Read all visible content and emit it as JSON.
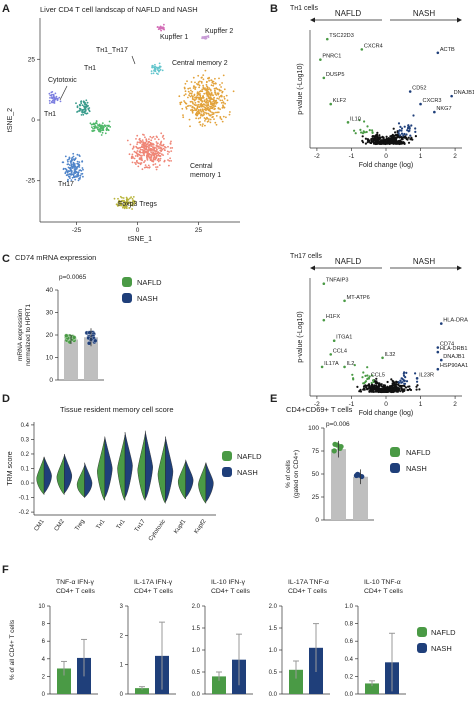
{
  "panel_letters": [
    "A",
    "B",
    "C",
    "D",
    "E",
    "F"
  ],
  "colors": {
    "nafld": "#4a9a45",
    "nash": "#1f3f7a",
    "up": "#1f3f7a",
    "down": "#4a9a45",
    "ns": "#111111",
    "bar": "#bfbfbf"
  },
  "chart_data": [
    {
      "panel": "A",
      "type": "scatter",
      "title": "Liver CD4 T cell landscap of NAFLD and NASH",
      "xlabel": "tSNE_1",
      "ylabel": "tSNE_2",
      "xlim": [
        -40,
        42
      ],
      "ylim": [
        -42,
        42
      ],
      "xticks": [
        -25,
        0,
        25
      ],
      "yticks": [
        -25,
        0,
        25
      ],
      "clusters": [
        {
          "label": "Kupffer 1",
          "color": "#d36db7",
          "cx": 10,
          "cy": 38
        },
        {
          "label": "Kupffer 2",
          "color": "#c89bd6",
          "cx": 28,
          "cy": 34
        },
        {
          "label": "Cytotoxic",
          "color": "#7c7fe0",
          "cx": -34,
          "cy": 9
        },
        {
          "label": "TH1",
          "color": "#3a9c8c",
          "cx": -22,
          "cy": 5
        },
        {
          "label": "TH1_TH17",
          "color": "#63c5cc",
          "cx": 8,
          "cy": 21
        },
        {
          "label": "Central memory 2",
          "color": "#e2a23a",
          "cx": 28,
          "cy": 8
        },
        {
          "label": "TH1",
          "color": "#4fb86a",
          "cx": -15,
          "cy": -3
        },
        {
          "label": "TH17",
          "color": "#4f84c9",
          "cx": -26,
          "cy": -20
        },
        {
          "label": "Central memory 1",
          "color": "#ef8677",
          "cx": 5,
          "cy": -13
        },
        {
          "label": "Foxp3 Tregs",
          "color": "#b8b43a",
          "cx": -5,
          "cy": -34
        }
      ],
      "cluster_label_text": {
        "kupffer1": "Kupffer 1",
        "kupffer2": "Kupffer 2",
        "cytotoxic": "Cytotoxic",
        "th1_th17": "Tн1_Tн17",
        "th1_top": "Tн1",
        "th1_left": "Tн1",
        "cm2": "Central memory 2",
        "th17": "Tн17",
        "cm1_a": "Central",
        "cm1_b": "memory 1",
        "tregs": "Foxp3 Tregs"
      }
    },
    {
      "panel": "B",
      "type": "scatter",
      "title": "Tн1 cells",
      "xlabel": "Fold change (log)",
      "ylabel": "p-value (-Log10)",
      "xlim": [
        -2.2,
        2.2
      ],
      "xticks": [
        -2,
        -1,
        0,
        1,
        2
      ],
      "arrow_labels": [
        "NAFLD",
        "NASH"
      ],
      "labeled_genes": [
        {
          "gene": "TSC22D3",
          "x": -1.7,
          "y": 9.2,
          "group": "down"
        },
        {
          "gene": "PNRC1",
          "x": -1.9,
          "y": 7.4,
          "group": "down"
        },
        {
          "gene": "CXCR4",
          "x": -0.7,
          "y": 8.3,
          "group": "down"
        },
        {
          "gene": "DUSP5",
          "x": -1.8,
          "y": 5.8,
          "group": "down"
        },
        {
          "gene": "KLF2",
          "x": -1.6,
          "y": 3.5,
          "group": "down"
        },
        {
          "gene": "IL10",
          "x": -1.1,
          "y": 1.9,
          "group": "down"
        },
        {
          "gene": "ACTB",
          "x": 1.5,
          "y": 8.0,
          "group": "up"
        },
        {
          "gene": "CD52",
          "x": 0.7,
          "y": 4.6,
          "group": "up"
        },
        {
          "gene": "CXCR3",
          "x": 1.0,
          "y": 3.5,
          "group": "up"
        },
        {
          "gene": "DNAJB1",
          "x": 1.9,
          "y": 4.2,
          "group": "up"
        },
        {
          "gene": "NKG7",
          "x": 1.4,
          "y": 2.8,
          "group": "up"
        }
      ]
    },
    {
      "panel": "B",
      "type": "scatter",
      "title": "Tн17 cells",
      "xlabel": "Fold change (log)",
      "ylabel": "p-value (-Log10)",
      "xlim": [
        -2.2,
        2.2
      ],
      "xticks": [
        -2,
        -1,
        0,
        1,
        2
      ],
      "arrow_labels": [
        "NAFLD",
        "NASH"
      ],
      "labeled_genes": [
        {
          "gene": "TNFAIP3",
          "x": -1.8,
          "y": 9.5,
          "group": "down"
        },
        {
          "gene": "MT-ATP6",
          "x": -1.2,
          "y": 8.0,
          "group": "down"
        },
        {
          "gene": "H1FX",
          "x": -1.8,
          "y": 6.3,
          "group": "down"
        },
        {
          "gene": "ITGA1",
          "x": -1.5,
          "y": 4.5,
          "group": "down"
        },
        {
          "gene": "CCL4",
          "x": -1.6,
          "y": 3.3,
          "group": "down"
        },
        {
          "gene": "IL17A",
          "x": -1.85,
          "y": 2.2,
          "group": "down"
        },
        {
          "gene": "IL2",
          "x": -1.2,
          "y": 2.2,
          "group": "down"
        },
        {
          "gene": "IL32",
          "x": -0.1,
          "y": 3.0,
          "group": "down"
        },
        {
          "gene": "CCL5",
          "x": -0.5,
          "y": 1.2,
          "group": "down"
        },
        {
          "gene": "HLA-DRA",
          "x": 1.6,
          "y": 6.0,
          "group": "up"
        },
        {
          "gene": "CD74",
          "x": 1.5,
          "y": 3.9,
          "group": "up"
        },
        {
          "gene": "HLA-DRB1",
          "x": 1.5,
          "y": 3.5,
          "group": "up"
        },
        {
          "gene": "DNAJB1",
          "x": 1.6,
          "y": 2.8,
          "group": "up"
        },
        {
          "gene": "HSP90AA1",
          "x": 1.5,
          "y": 2.0,
          "group": "up"
        },
        {
          "gene": "IL23R",
          "x": 0.9,
          "y": 1.2,
          "group": "up"
        }
      ]
    },
    {
      "panel": "C",
      "type": "bar",
      "title": "CD74 mRNA expression",
      "ylabel_lines": [
        "mRNA expression",
        "normalized to HPRT1"
      ],
      "ylim": [
        0,
        40
      ],
      "yticks": [
        0,
        10,
        20,
        30,
        40
      ],
      "categories": [
        "NAFLD",
        "NASH"
      ],
      "values": [
        18,
        19
      ],
      "error": [
        2,
        4
      ],
      "pvalue": "p=0.0065"
    },
    {
      "panel": "D",
      "type": "violin",
      "title": "Tissue resident memory cell score",
      "ylabel": "TRM score",
      "ylim": [
        -0.22,
        0.42
      ],
      "yticks": [
        -0.2,
        -0.1,
        0.0,
        0.1,
        0.2,
        0.3,
        0.4
      ],
      "categories": [
        "CM1",
        "CM2",
        "Treg",
        "Tн1",
        "Tн1",
        "Tн17",
        "Cytotoxic",
        "Kupf1",
        "Kupf2"
      ],
      "series": [
        {
          "name": "NAFLD",
          "max": [
            0.18,
            0.19,
            0.12,
            0.31,
            0.33,
            0.34,
            0.3,
            0.15,
            0.14
          ],
          "min": [
            -0.08,
            -0.08,
            -0.1,
            -0.12,
            -0.12,
            -0.12,
            -0.14,
            -0.11,
            -0.14
          ],
          "median": [
            0.03,
            0.04,
            -0.01,
            0.08,
            0.1,
            0.09,
            0.06,
            0.01,
            -0.01
          ]
        },
        {
          "name": "NASH",
          "max": [
            0.18,
            0.2,
            0.14,
            0.32,
            0.35,
            0.36,
            0.32,
            0.16,
            0.14
          ],
          "min": [
            -0.07,
            -0.07,
            -0.1,
            -0.1,
            -0.1,
            -0.11,
            -0.13,
            -0.1,
            -0.13
          ],
          "median": [
            0.05,
            0.05,
            0.0,
            0.1,
            0.12,
            0.11,
            0.08,
            0.02,
            0.0
          ]
        }
      ]
    },
    {
      "panel": "E",
      "type": "bar",
      "title": "CD4+CD69+ T cells",
      "ylabel_lines": [
        "% of cells",
        "(gated on CD4+)"
      ],
      "ylim": [
        0,
        100
      ],
      "yticks": [
        0,
        25,
        50,
        75,
        100
      ],
      "categories": [
        "NAFLD",
        "NASH"
      ],
      "values": [
        77,
        47
      ],
      "error": [
        9,
        8
      ],
      "pvalue": "p=0.006"
    },
    {
      "panel": "F",
      "type": "bar",
      "ylabel": "% of all CD4+ T cells",
      "series_names": [
        "NAFLD",
        "NASH"
      ],
      "subplots": [
        {
          "title_lines": [
            "TNF-α IFN-γ",
            "CD4+ T cells"
          ],
          "ylim": [
            0,
            10
          ],
          "yticks": [
            0,
            2,
            4,
            6,
            8,
            10
          ],
          "values": [
            2.9,
            4.1
          ],
          "error": [
            0.8,
            2.1
          ]
        },
        {
          "title_lines": [
            "IL-17A IFN-γ",
            "CD4+ T cells"
          ],
          "ylim": [
            0,
            3
          ],
          "yticks": [
            0,
            1,
            2,
            3
          ],
          "values": [
            0.2,
            1.3
          ],
          "error": [
            0.05,
            1.15
          ]
        },
        {
          "title_lines": [
            "IL-10 IFN-γ",
            "CD4+ T cells"
          ],
          "ylim": [
            0,
            2
          ],
          "yticks": [
            0.0,
            0.5,
            1.0,
            1.5,
            2.0
          ],
          "values": [
            0.4,
            0.78
          ],
          "error": [
            0.1,
            0.58
          ]
        },
        {
          "title_lines": [
            "IL-17A TNF-α",
            "CD4+ T cells"
          ],
          "ylim": [
            0,
            2
          ],
          "yticks": [
            0.0,
            0.5,
            1.0,
            1.5,
            2.0
          ],
          "values": [
            0.55,
            1.05
          ],
          "error": [
            0.2,
            0.55
          ]
        },
        {
          "title_lines": [
            "IL-10 TNF-α",
            "CD4+ T cells"
          ],
          "ylim": [
            0,
            1
          ],
          "yticks": [
            0.0,
            0.2,
            0.4,
            0.6,
            0.8,
            1.0
          ],
          "values": [
            0.12,
            0.36
          ],
          "error": [
            0.03,
            0.33
          ]
        }
      ]
    }
  ]
}
